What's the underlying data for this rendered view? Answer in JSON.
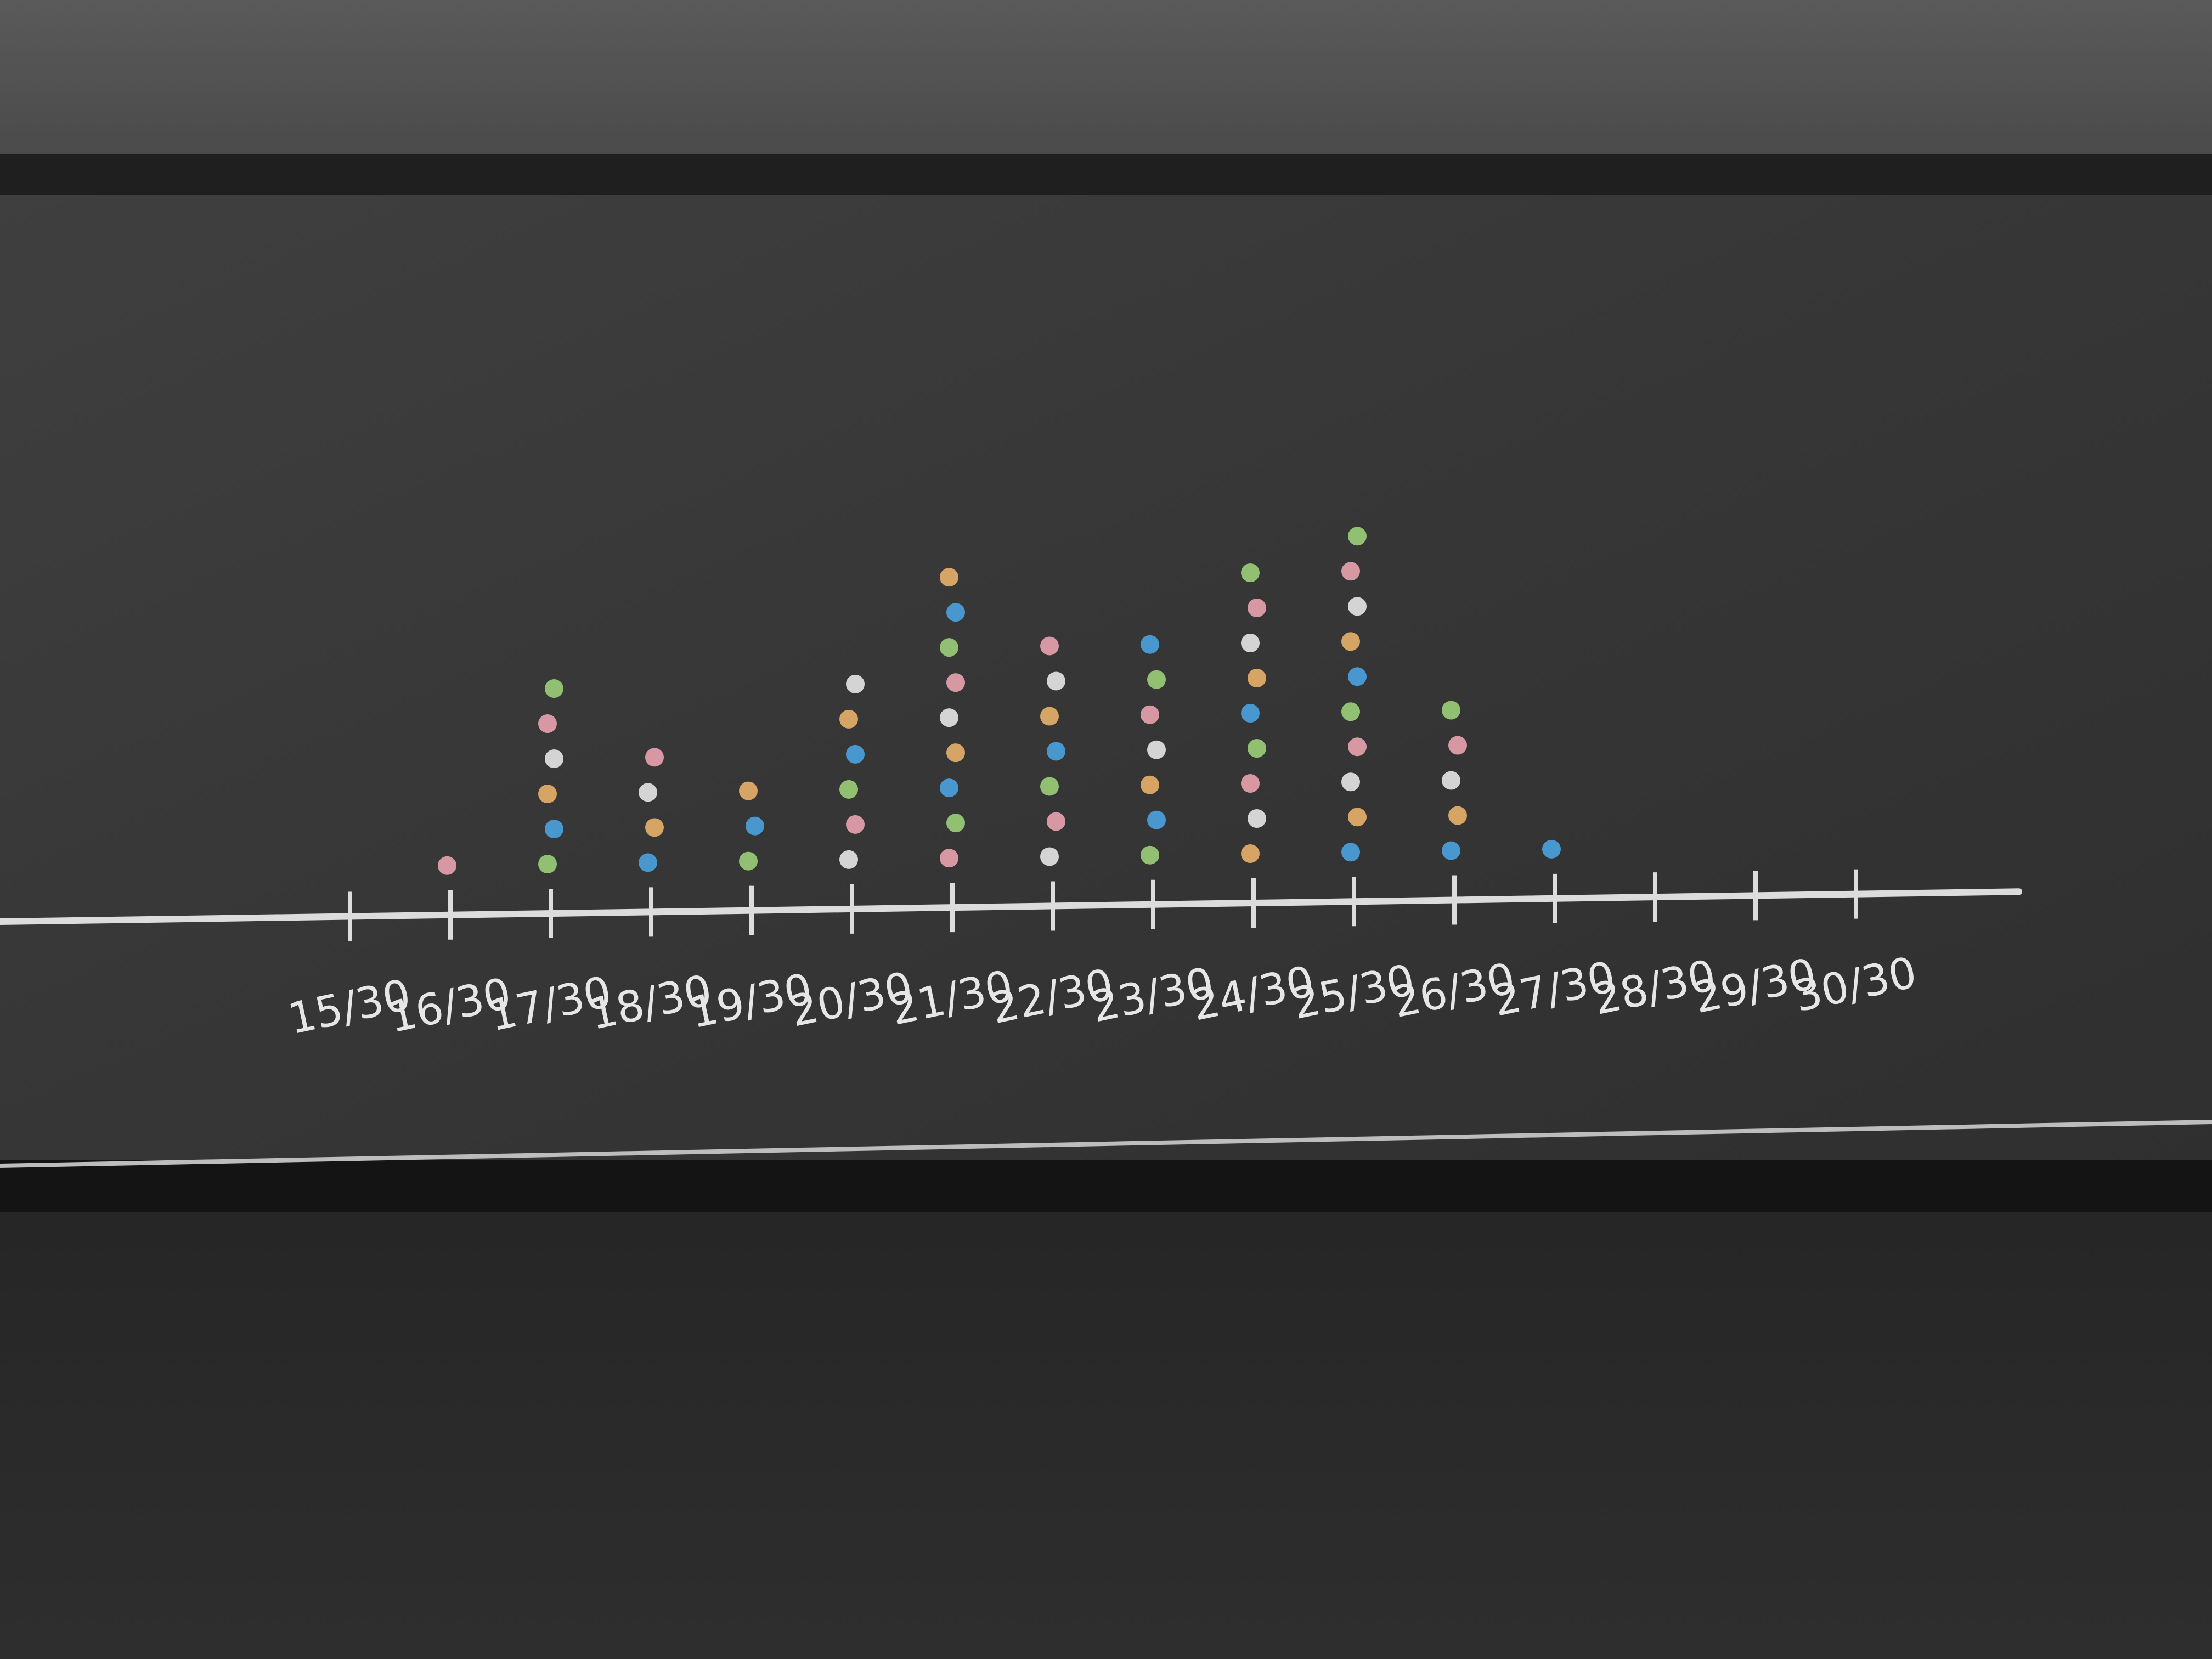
{
  "chart_data": {
    "type": "dotplot",
    "categories": [
      "15/30",
      "16/30",
      "17/30",
      "18/30",
      "19/30",
      "20/30",
      "21/30",
      "22/30",
      "23/30",
      "24/30",
      "25/30",
      "26/30",
      "27/30",
      "28/30",
      "29/30",
      "30/30"
    ],
    "values": [
      0,
      1,
      6,
      4,
      3,
      6,
      9,
      7,
      7,
      9,
      10,
      5,
      1,
      0,
      0,
      0
    ],
    "colors": [
      "#e9a3b0",
      "#9ccf7a",
      "#4aa3e0",
      "#e8b06a",
      "#e6e6e6"
    ],
    "axis_color": "#dcdcdc"
  }
}
